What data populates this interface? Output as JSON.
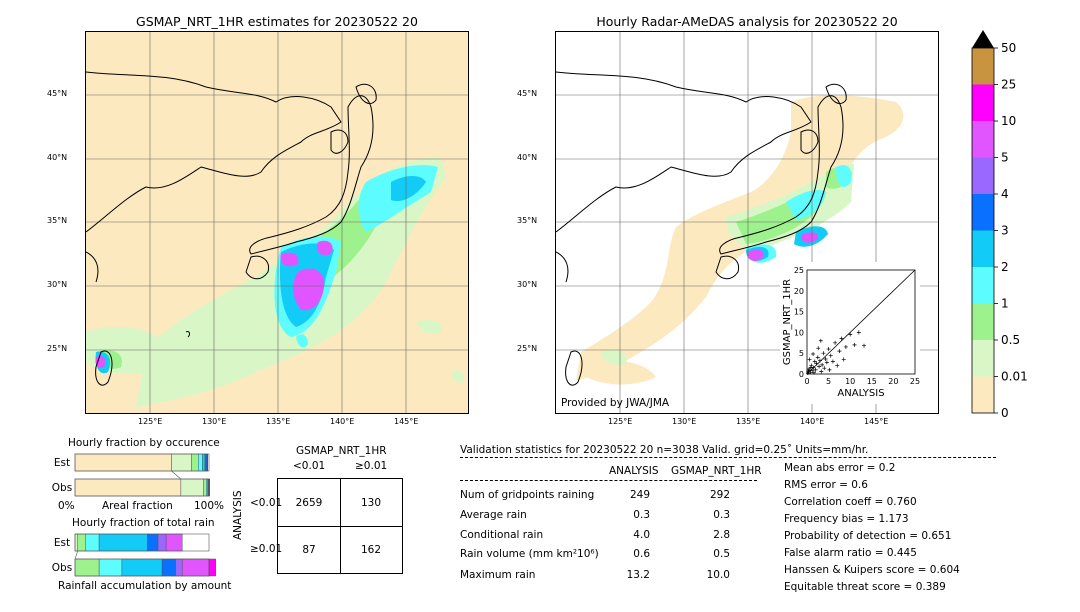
{
  "chart_data": [
    {
      "type": "heatmap",
      "title": "GSMAP_NRT_1HR estimates for 20230522 20",
      "xticks": [
        "125°E",
        "130°E",
        "135°E",
        "140°E",
        "145°E"
      ],
      "yticks": [
        "45°N",
        "40°N",
        "35°N",
        "30°N",
        "25°N"
      ]
    },
    {
      "type": "heatmap",
      "title": "Hourly Radar-AMeDAS analysis for 20230522 20",
      "xticks": [
        "125°E",
        "130°E",
        "135°E",
        "140°E",
        "145°E"
      ],
      "yticks": [
        "45°N",
        "40°N",
        "35°N",
        "30°N",
        "25°N"
      ],
      "credit": "Provided by JWA/JMA"
    },
    {
      "type": "scatter",
      "xlabel": "ANALYSIS",
      "ylabel": "GSMAP_NRT_1HR",
      "xlim": [
        0,
        25
      ],
      "ylim": [
        0,
        25
      ],
      "ticks": [
        "0",
        "5",
        "10",
        "15",
        "20",
        "25"
      ],
      "points": [
        [
          0.3,
          0.5
        ],
        [
          0.5,
          1.2
        ],
        [
          0.8,
          0.4
        ],
        [
          1.0,
          2.0
        ],
        [
          1.2,
          0.8
        ],
        [
          1.5,
          1.5
        ],
        [
          1.8,
          3.0
        ],
        [
          2.0,
          1.0
        ],
        [
          2.2,
          2.5
        ],
        [
          2.5,
          4.0
        ],
        [
          2.8,
          1.8
        ],
        [
          3.0,
          3.2
        ],
        [
          3.3,
          0.6
        ],
        [
          3.5,
          2.2
        ],
        [
          3.8,
          5.0
        ],
        [
          4.0,
          1.4
        ],
        [
          4.3,
          3.6
        ],
        [
          4.6,
          2.8
        ],
        [
          5.0,
          6.0
        ],
        [
          5.2,
          1.0
        ],
        [
          5.5,
          4.4
        ],
        [
          6.0,
          3.0
        ],
        [
          6.5,
          7.5
        ],
        [
          7.0,
          2.0
        ],
        [
          7.5,
          5.5
        ],
        [
          8.0,
          8.5
        ],
        [
          8.5,
          3.5
        ],
        [
          9.0,
          6.5
        ],
        [
          10.0,
          9.5
        ],
        [
          11.0,
          7.0
        ],
        [
          12.0,
          10.0
        ],
        [
          13.2,
          6.8
        ],
        [
          0.6,
          3.5
        ],
        [
          1.4,
          4.8
        ],
        [
          2.6,
          6.2
        ],
        [
          3.2,
          8.0
        ],
        [
          0.2,
          0.2
        ],
        [
          0.4,
          0.9
        ],
        [
          0.9,
          1.6
        ],
        [
          1.6,
          0.3
        ]
      ]
    },
    {
      "type": "bar",
      "title": "Hourly fraction by occurence",
      "categories": [
        "Est",
        "Obs"
      ],
      "xlabel": "Areal fraction",
      "x_left": "0%",
      "x_right": "100%",
      "series": [
        {
          "values": [
            0.72,
            0.79
          ]
        },
        {
          "values": [
            0.15,
            0.17
          ]
        },
        {
          "values": [
            0.05,
            0.02
          ]
        },
        {
          "values": [
            0.03,
            0.01
          ]
        },
        {
          "values": [
            0.02,
            0.005
          ]
        },
        {
          "values": [
            0.015,
            0.005
          ]
        },
        {
          "values": [
            0.005,
            0.005
          ]
        }
      ]
    },
    {
      "type": "bar",
      "title": "Hourly fraction of total rain",
      "categories": [
        "Est",
        "Obs"
      ],
      "xlabel": "Rainfall accumulation by amount",
      "series": [
        {
          "values": [
            0.02,
            0.0
          ]
        },
        {
          "values": [
            0.06,
            0.18
          ]
        },
        {
          "values": [
            0.1,
            0.17
          ]
        },
        {
          "values": [
            0.36,
            0.3
          ]
        },
        {
          "values": [
            0.08,
            0.1
          ]
        },
        {
          "values": [
            0.06,
            0.05
          ]
        },
        {
          "values": [
            0.12,
            0.2
          ]
        },
        {
          "values": [
            0.0,
            0.05
          ]
        }
      ]
    },
    {
      "type": "table",
      "title": "GSMAP_NRT_1HR",
      "col_headers": [
        "<0.01",
        "≥0.01"
      ],
      "row_label": "ANALYSIS",
      "row_headers": [
        "<0.01",
        "≥0.01"
      ],
      "cells": [
        [
          "2659",
          "130"
        ],
        [
          "87",
          "162"
        ]
      ]
    }
  ],
  "colorbar": {
    "labels": [
      "0",
      "0.01",
      "0.5",
      "1",
      "2",
      "3",
      "4",
      "5",
      "10",
      "25",
      "50"
    ],
    "colors": [
      "#fde9c0",
      "#d9f6c6",
      "#9ef28e",
      "#5dfcff",
      "#12ccf7",
      "#0a70ff",
      "#9a68ff",
      "#e055ff",
      "#ff00ff",
      "#c99440"
    ]
  },
  "validation": {
    "header": "Validation statistics for 20230522 20  n=3038 Valid. grid=0.25˚ Units=mm/hr.",
    "col1": "ANALYSIS",
    "col2": "GSMAP_NRT_1HR",
    "rows": [
      {
        "label": "Num of gridpoints raining",
        "a": "249",
        "b": "292"
      },
      {
        "label": "Average rain",
        "a": "0.3",
        "b": "0.3"
      },
      {
        "label": "Conditional rain",
        "a": "4.0",
        "b": "2.8"
      },
      {
        "label": "Rain volume (mm km²10⁶)",
        "a": "0.6",
        "b": "0.5"
      },
      {
        "label": "Maximum rain",
        "a": "13.2",
        "b": "10.0"
      }
    ],
    "scores": [
      "Mean abs error =    0.2",
      "RMS error =    0.6",
      "Correlation coeff =  0.760",
      "Frequency bias =  1.173",
      "Probability of detection =  0.651",
      "False alarm ratio =  0.445",
      "Hanssen & Kuipers score =  0.604",
      "Equitable threat score =  0.389"
    ]
  }
}
